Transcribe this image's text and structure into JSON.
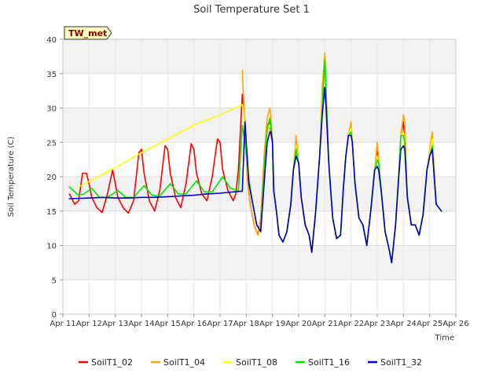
{
  "chart_data": {
    "type": "line",
    "title": "Soil Temperature Set 1",
    "xlabel": "Time",
    "ylabel": "Soil Temperature (C)",
    "site_label": "TW_met",
    "xlim": [
      11,
      26
    ],
    "ylim": [
      0,
      40
    ],
    "x_tick_values": [
      11,
      12,
      13,
      14,
      15,
      16,
      17,
      18,
      19,
      20,
      21,
      22,
      23,
      24,
      25,
      26
    ],
    "x_tick_labels": [
      "Apr 11",
      "Apr 12",
      "Apr 13",
      "Apr 14",
      "Apr 15",
      "Apr 16",
      "Apr 17",
      "Apr 18",
      "Apr 19",
      "Apr 20",
      "Apr 21",
      "Apr 22",
      "Apr 23",
      "Apr 24",
      "Apr 25",
      "Apr 26"
    ],
    "y_tick_values": [
      0,
      5,
      10,
      15,
      20,
      25,
      30,
      35,
      40
    ],
    "y_tick_labels": [
      "0",
      "5",
      "10",
      "15",
      "20",
      "25",
      "30",
      "35",
      "40"
    ],
    "grid": true,
    "legend_position": "bottom",
    "series": [
      {
        "name": "SoilT1_02",
        "color": "#ff0000",
        "x": [
          11.25,
          11.45,
          11.6,
          11.75,
          11.9,
          12.0,
          12.1,
          12.3,
          12.5,
          12.7,
          12.9,
          13.0,
          13.1,
          13.3,
          13.5,
          13.7,
          13.9,
          14.0,
          14.1,
          14.3,
          14.5,
          14.7,
          14.9,
          15.0,
          15.1,
          15.3,
          15.5,
          15.7,
          15.9,
          16.0,
          16.1,
          16.3,
          16.5,
          16.7,
          16.9,
          17.0,
          17.1,
          17.3,
          17.5,
          17.6,
          17.7,
          17.85,
          17.95,
          18.05,
          18.15,
          18.3,
          18.45,
          18.55,
          18.7,
          18.8,
          18.9,
          18.95,
          19.0,
          19.05,
          19.15,
          19.25,
          19.4,
          19.55,
          19.7,
          19.8,
          19.9,
          20.0,
          20.1,
          20.25,
          20.4,
          20.5,
          20.65,
          20.8,
          20.9,
          21.0,
          21.05,
          21.15,
          21.3,
          21.45,
          21.6,
          21.7,
          21.8,
          21.9,
          22.0,
          22.05,
          22.15,
          22.3,
          22.45,
          22.6,
          22.75,
          22.9,
          23.0,
          23.05,
          23.15,
          23.3,
          23.45,
          23.55,
          23.7,
          23.8,
          23.9,
          24.0,
          24.05,
          24.15,
          24.3,
          24.45,
          24.6,
          24.75,
          24.9,
          25.0,
          25.1,
          25.25,
          25.45
        ],
        "values": [
          17.5,
          16.0,
          16.5,
          20.5,
          20.5,
          19.0,
          17.0,
          15.5,
          14.8,
          17.5,
          21.0,
          19.0,
          17.0,
          15.5,
          14.7,
          16.5,
          23.5,
          24.0,
          20.5,
          16.5,
          15.0,
          18.0,
          24.5,
          24.0,
          20.5,
          17.0,
          15.5,
          19.0,
          24.8,
          24.0,
          20.5,
          17.5,
          16.5,
          20.0,
          25.5,
          25.0,
          21.0,
          18.0,
          16.5,
          17.5,
          21.0,
          32.0,
          28.0,
          19.5,
          16.0,
          13.0,
          11.5,
          14.0,
          24.0,
          27.5,
          28.0,
          26.0,
          25.0,
          18.0,
          15.0,
          11.5,
          10.5,
          12.0,
          16.0,
          21.0,
          24.0,
          22.0,
          17.0,
          13.0,
          11.5,
          9.0,
          15.0,
          23.0,
          30.0,
          33.0,
          30.0,
          22.0,
          14.0,
          11.0,
          11.5,
          18.0,
          23.0,
          26.0,
          26.5,
          25.0,
          19.0,
          14.0,
          13.0,
          10.0,
          15.0,
          21.0,
          24.0,
          22.5,
          18.0,
          12.0,
          9.5,
          7.5,
          13.0,
          19.0,
          26.0,
          28.0,
          25.0,
          17.0,
          13.0,
          13.0,
          11.5,
          14.5,
          21.0,
          23.0,
          24.0,
          16.0,
          15.0
        ]
      },
      {
        "name": "SoilT1_04",
        "color": "#ffa500",
        "x": [
          17.85,
          17.95,
          18.05,
          18.15,
          18.3,
          18.45,
          18.55,
          18.7,
          18.8,
          18.9,
          18.95,
          19.0,
          19.05,
          19.15,
          19.25,
          19.4,
          19.55,
          19.7,
          19.8,
          19.9,
          20.0,
          20.1,
          20.25,
          20.4,
          20.5,
          20.65,
          20.8,
          20.9,
          21.0,
          21.05,
          21.15,
          21.3,
          21.45,
          21.6,
          21.7,
          21.8,
          21.9,
          22.0,
          22.05,
          22.15,
          22.3,
          22.45,
          22.6,
          22.75,
          22.9,
          23.0,
          23.05,
          23.15,
          23.3,
          23.45,
          23.55,
          23.7,
          23.8,
          23.9,
          24.0,
          24.05,
          24.15,
          24.3,
          24.45,
          24.6,
          24.75,
          24.9,
          25.0,
          25.1,
          25.25,
          25.45
        ],
        "values": [
          35.5,
          27.0,
          19.5,
          16.0,
          13.0,
          11.5,
          14.0,
          24.0,
          28.5,
          30.0,
          28.0,
          25.0,
          18.0,
          15.0,
          11.5,
          10.5,
          12.0,
          16.0,
          21.0,
          26.0,
          22.0,
          17.0,
          13.0,
          11.5,
          9.0,
          15.0,
          23.0,
          33.0,
          38.0,
          33.0,
          22.0,
          14.0,
          11.0,
          11.5,
          18.0,
          23.0,
          26.0,
          28.0,
          25.0,
          19.0,
          14.0,
          13.0,
          10.0,
          15.0,
          21.0,
          25.0,
          23.0,
          18.0,
          12.0,
          9.5,
          7.5,
          13.0,
          19.0,
          26.0,
          29.0,
          28.0,
          17.0,
          13.0,
          13.0,
          11.5,
          14.5,
          21.0,
          24.0,
          26.5,
          16.0,
          15.0
        ]
      },
      {
        "name": "SoilT1_08",
        "color": "#ffff00",
        "x": [
          11.6,
          12.0,
          13.0,
          14.0,
          15.0,
          16.0,
          17.0,
          17.85,
          17.95,
          18.1,
          18.25,
          18.4,
          18.55,
          18.7,
          18.8,
          18.9,
          18.95,
          19.0,
          19.05,
          19.15,
          19.25,
          19.4,
          19.55,
          19.7,
          19.8,
          19.9,
          20.0,
          20.1,
          20.25,
          20.4,
          20.5,
          20.65,
          20.8,
          20.9,
          21.0,
          21.05,
          21.15,
          21.3,
          21.45,
          21.6,
          21.7,
          21.8,
          21.9,
          22.0,
          22.05,
          22.15,
          22.3,
          22.45,
          22.6,
          22.75,
          22.9,
          23.0,
          23.05,
          23.15,
          23.3,
          23.45,
          23.55,
          23.7,
          23.8,
          23.9,
          24.0,
          24.05,
          24.15,
          24.3,
          24.45,
          24.6,
          24.75,
          24.9,
          25.0,
          25.1,
          25.25,
          25.45
        ],
        "values": [
          18.5,
          19.3,
          21.3,
          23.5,
          25.5,
          27.5,
          29.0,
          30.5,
          27.5,
          20.0,
          16.0,
          13.0,
          12.0,
          22.0,
          26.5,
          27.5,
          27.0,
          25.0,
          18.5,
          15.0,
          11.5,
          10.5,
          12.0,
          16.0,
          21.0,
          24.5,
          22.0,
          17.0,
          13.0,
          11.5,
          9.0,
          15.0,
          23.0,
          31.0,
          36.0,
          32.0,
          22.0,
          14.0,
          11.0,
          11.5,
          18.0,
          23.0,
          26.0,
          27.0,
          25.0,
          19.0,
          14.0,
          13.0,
          10.0,
          15.0,
          21.0,
          23.0,
          22.0,
          18.0,
          12.0,
          9.5,
          7.5,
          13.0,
          19.0,
          26.0,
          26.5,
          25.0,
          17.0,
          13.0,
          13.0,
          11.5,
          14.5,
          21.0,
          23.5,
          25.5,
          16.0,
          15.0
        ]
      },
      {
        "name": "SoilT1_16",
        "color": "#00e600",
        "x": [
          11.25,
          11.6,
          11.8,
          12.1,
          12.4,
          12.7,
          13.1,
          13.4,
          13.7,
          14.1,
          14.4,
          14.7,
          15.1,
          15.4,
          15.7,
          16.1,
          16.4,
          16.7,
          17.1,
          17.4,
          17.7,
          17.85,
          17.95,
          18.1,
          18.25,
          18.4,
          18.55,
          18.7,
          18.8,
          18.9,
          18.95,
          19.0,
          19.05,
          19.15,
          19.25,
          19.4,
          19.55,
          19.7,
          19.8,
          19.9,
          20.0,
          20.1,
          20.25,
          20.4,
          20.5,
          20.65,
          20.8,
          20.9,
          21.0,
          21.05,
          21.15,
          21.3,
          21.45,
          21.6,
          21.7,
          21.8,
          21.9,
          22.0,
          22.05,
          22.15,
          22.3,
          22.45,
          22.6,
          22.75,
          22.9,
          23.0,
          23.05,
          23.15,
          23.3,
          23.45,
          23.55,
          23.7,
          23.8,
          23.9,
          24.0,
          24.05,
          24.15,
          24.3,
          24.45,
          24.6,
          24.75,
          24.9,
          25.0,
          25.1,
          25.25,
          25.45
        ],
        "values": [
          18.5,
          17.3,
          17.5,
          18.3,
          17.0,
          17.0,
          18.0,
          17.0,
          17.0,
          18.7,
          17.3,
          17.2,
          19.0,
          17.5,
          17.5,
          19.4,
          17.8,
          17.8,
          20.0,
          18.3,
          18.0,
          27.5,
          25.0,
          19.5,
          16.0,
          13.0,
          12.0,
          22.0,
          27.0,
          28.5,
          27.0,
          25.0,
          18.0,
          15.0,
          11.5,
          10.5,
          12.0,
          16.0,
          21.0,
          24.0,
          22.0,
          17.0,
          13.0,
          11.5,
          9.0,
          15.0,
          23.0,
          30.0,
          37.0,
          32.0,
          22.0,
          14.0,
          11.0,
          11.5,
          18.0,
          23.0,
          26.0,
          26.5,
          25.0,
          19.0,
          14.0,
          13.0,
          10.0,
          15.0,
          21.0,
          22.5,
          22.0,
          18.0,
          12.0,
          9.5,
          7.5,
          13.0,
          19.0,
          26.0,
          26.0,
          25.0,
          17.0,
          13.0,
          13.0,
          11.5,
          14.5,
          21.0,
          23.0,
          24.5,
          16.0,
          15.0
        ]
      },
      {
        "name": "SoilT1_32",
        "color": "#0000cc",
        "x": [
          11.25,
          12.0,
          12.5,
          13.0,
          13.5,
          14.0,
          14.5,
          15.0,
          15.5,
          16.0,
          16.5,
          17.0,
          17.5,
          17.85,
          17.95,
          18.1,
          18.25,
          18.4,
          18.55,
          18.7,
          18.8,
          18.9,
          18.95,
          19.0,
          19.05,
          19.15,
          19.25,
          19.4,
          19.55,
          19.7,
          19.8,
          19.9,
          20.0,
          20.1,
          20.25,
          20.4,
          20.5,
          20.65,
          20.8,
          20.9,
          21.0,
          21.05,
          21.15,
          21.3,
          21.45,
          21.6,
          21.7,
          21.8,
          21.9,
          22.0,
          22.05,
          22.15,
          22.3,
          22.45,
          22.6,
          22.75,
          22.9,
          23.0,
          23.05,
          23.15,
          23.3,
          23.45,
          23.55,
          23.7,
          23.8,
          23.9,
          24.0,
          24.05,
          24.15,
          24.3,
          24.45,
          24.6,
          24.75,
          24.9,
          25.0,
          25.1,
          25.25,
          25.45
        ],
        "values": [
          16.8,
          16.9,
          17.0,
          16.9,
          16.9,
          17.0,
          17.0,
          17.1,
          17.2,
          17.3,
          17.5,
          17.6,
          17.8,
          17.9,
          28.0,
          19.0,
          16.0,
          13.0,
          12.0,
          20.0,
          25.0,
          26.5,
          26.5,
          25.0,
          18.0,
          15.0,
          11.5,
          10.5,
          12.0,
          16.0,
          21.0,
          23.0,
          22.0,
          17.0,
          13.0,
          11.5,
          9.0,
          15.0,
          23.0,
          29.0,
          33.0,
          30.0,
          22.0,
          14.0,
          11.0,
          11.5,
          18.0,
          23.0,
          26.0,
          26.0,
          25.0,
          19.0,
          14.0,
          13.0,
          10.0,
          15.0,
          21.0,
          21.5,
          21.0,
          18.0,
          12.0,
          9.5,
          7.5,
          13.0,
          19.0,
          24.0,
          24.5,
          24.0,
          17.0,
          13.0,
          13.0,
          11.5,
          14.5,
          21.0,
          23.0,
          24.0,
          16.0,
          15.0
        ]
      }
    ]
  }
}
